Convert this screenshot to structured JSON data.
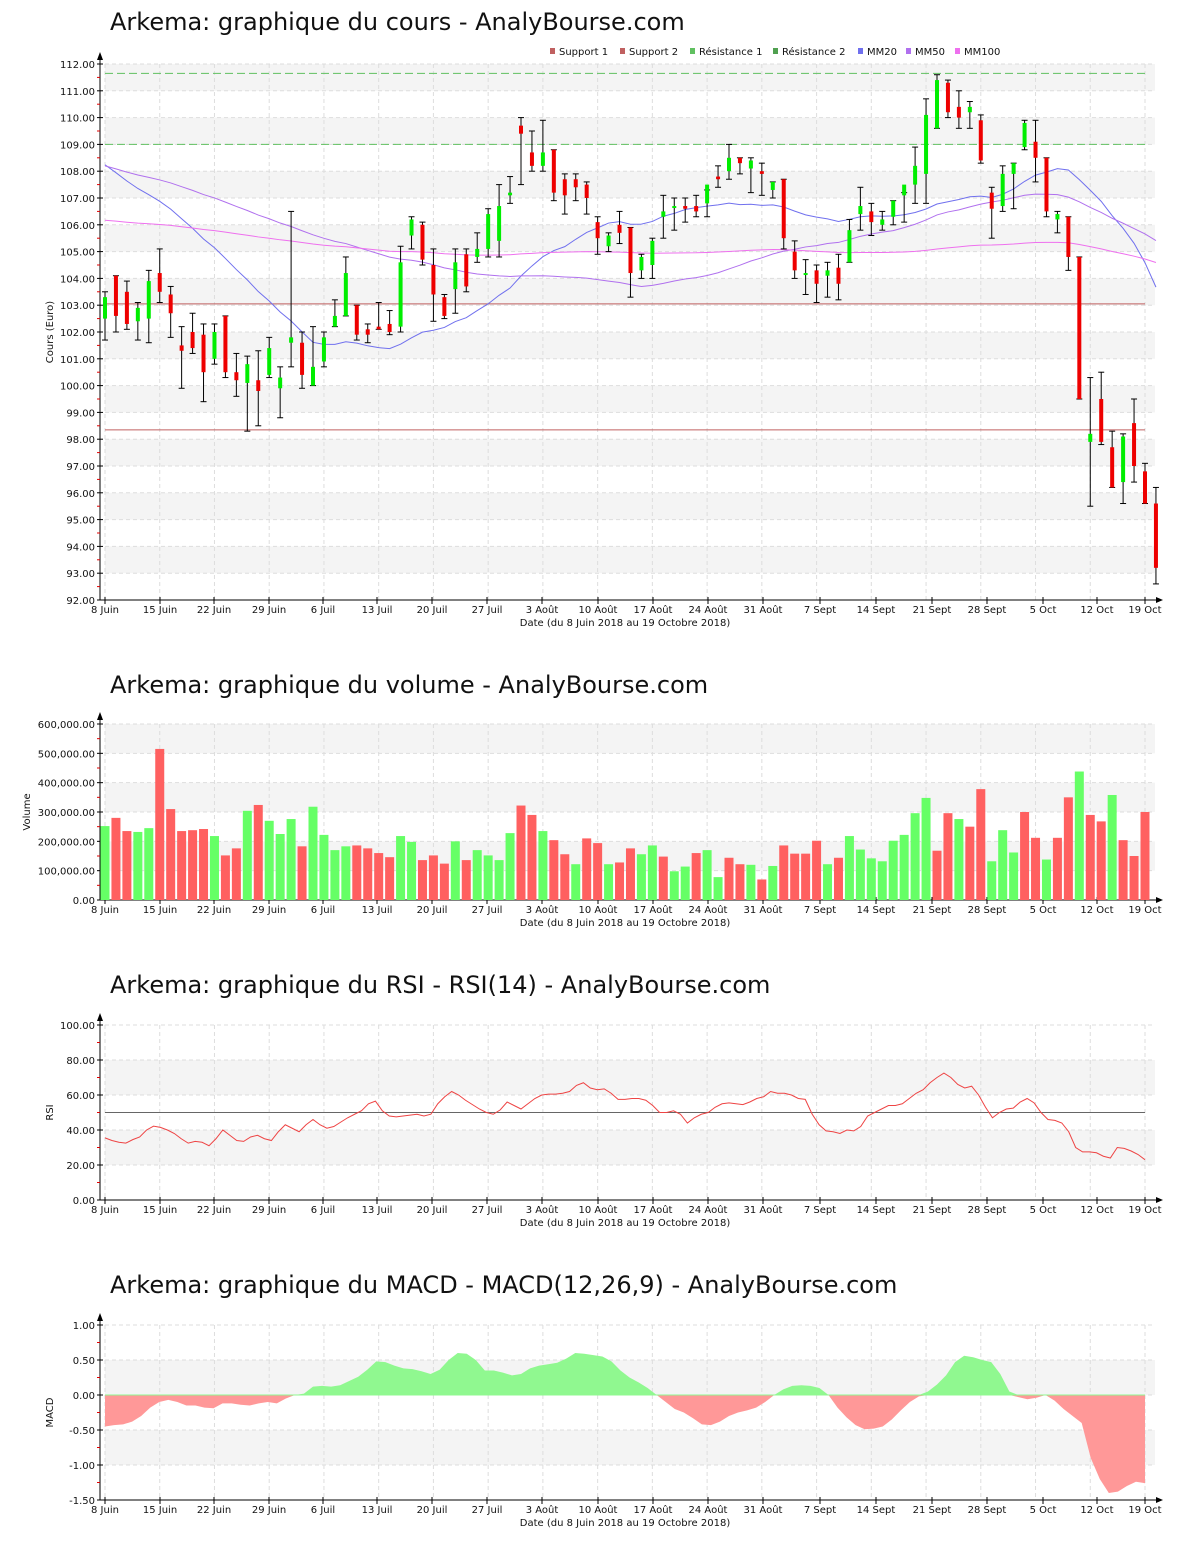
{
  "titles": {
    "price": "Arkema: graphique du cours - AnalyBourse.com",
    "volume": "Arkema: graphique du volume - AnalyBourse.com",
    "rsi": "Arkema: graphique du RSI - RSI(14) - AnalyBourse.com",
    "macd": "Arkema: graphique du MACD - MACD(12,26,9) - AnalyBourse.com"
  },
  "xlabel": "Date (du 8 Juin 2018 au 19 Octobre 2018)",
  "x_ticks": [
    "8 Juin",
    "15 Juin",
    "22 Juin",
    "29 Juin",
    "6 Juil",
    "13 Juil",
    "20 Juil",
    "27 Juil",
    "3 Août",
    "10 Août",
    "17 Août",
    "24 Août",
    "31 Août",
    "7 Sept",
    "14 Sept",
    "21 Sept",
    "28 Sept",
    "5 Oct",
    "12 Oct",
    "19 Oct"
  ],
  "colors": {
    "up": "#00ee00",
    "down": "#ee0000",
    "vol_up": "#66ff66",
    "vol_down": "#ff6060",
    "support": "#c06060",
    "resistance": "#60c060",
    "mm20": "#7070ee",
    "mm50": "#b070ee",
    "mm100": "#ee70ee",
    "rsi_line": "#ee4444",
    "macd_pos": "#90f890",
    "macd_neg": "#ff9898"
  },
  "chart_data": [
    {
      "type": "candlestick",
      "title": "Arkema: graphique du cours - AnalyBourse.com",
      "ylabel": "Cours (Euro)",
      "xlabel": "Date (du 8 Juin 2018 au 19 Octobre 2018)",
      "ylim": [
        92,
        112
      ],
      "y_ticks": [
        "92.00",
        "93.00",
        "94.00",
        "95.00",
        "96.00",
        "97.00",
        "98.00",
        "99.00",
        "100.00",
        "101.00",
        "102.00",
        "103.00",
        "104.00",
        "105.00",
        "106.00",
        "107.00",
        "108.00",
        "109.00",
        "110.00",
        "111.00",
        "112.00"
      ],
      "legend": [
        "Support 1",
        "Support 2",
        "Résistance 1",
        "Résistance 2",
        "MM20",
        "MM50",
        "MM100"
      ],
      "levels": {
        "support1": 103.05,
        "support2": 98.35,
        "resistance1": 111.65,
        "resistance2": 109.0
      },
      "candles": [
        {
          "o": 102.5,
          "h": 103.5,
          "l": 101.7,
          "c": 103.3
        },
        {
          "o": 104.1,
          "h": 104.1,
          "l": 102.0,
          "c": 102.6
        },
        {
          "o": 103.5,
          "h": 103.9,
          "l": 102.1,
          "c": 102.3
        },
        {
          "o": 102.4,
          "h": 103.1,
          "l": 101.7,
          "c": 102.9
        },
        {
          "o": 102.5,
          "h": 104.3,
          "l": 101.6,
          "c": 103.9
        },
        {
          "o": 104.2,
          "h": 105.1,
          "l": 103.1,
          "c": 103.5
        },
        {
          "o": 103.4,
          "h": 103.7,
          "l": 101.8,
          "c": 102.7
        },
        {
          "o": 101.5,
          "h": 102.2,
          "l": 99.9,
          "c": 101.3
        },
        {
          "o": 102.0,
          "h": 102.7,
          "l": 101.2,
          "c": 101.4
        },
        {
          "o": 101.9,
          "h": 102.3,
          "l": 99.4,
          "c": 100.5
        },
        {
          "o": 101.0,
          "h": 102.3,
          "l": 100.8,
          "c": 102.0
        },
        {
          "o": 102.6,
          "h": 102.6,
          "l": 100.3,
          "c": 100.5
        },
        {
          "o": 100.5,
          "h": 101.2,
          "l": 99.6,
          "c": 100.2
        },
        {
          "o": 100.1,
          "h": 101.1,
          "l": 98.3,
          "c": 100.8
        },
        {
          "o": 100.2,
          "h": 101.3,
          "l": 98.5,
          "c": 99.8
        },
        {
          "o": 100.4,
          "h": 101.8,
          "l": 100.3,
          "c": 101.4
        },
        {
          "o": 99.9,
          "h": 100.7,
          "l": 98.8,
          "c": 100.3
        },
        {
          "o": 101.6,
          "h": 106.5,
          "l": 100.7,
          "c": 101.8
        },
        {
          "o": 101.6,
          "h": 102.0,
          "l": 99.9,
          "c": 100.4
        },
        {
          "o": 100.0,
          "h": 102.2,
          "l": 100.0,
          "c": 100.7
        },
        {
          "o": 100.9,
          "h": 102.0,
          "l": 100.7,
          "c": 101.8
        },
        {
          "o": 102.2,
          "h": 103.2,
          "l": 102.2,
          "c": 102.6
        },
        {
          "o": 102.6,
          "h": 104.8,
          "l": 102.6,
          "c": 104.2
        },
        {
          "o": 103.0,
          "h": 103.0,
          "l": 101.7,
          "c": 101.9
        },
        {
          "o": 102.1,
          "h": 102.3,
          "l": 101.6,
          "c": 101.9
        },
        {
          "o": 102.2,
          "h": 103.1,
          "l": 102.1,
          "c": 102.1
        },
        {
          "o": 102.3,
          "h": 102.8,
          "l": 101.9,
          "c": 102.0
        },
        {
          "o": 102.2,
          "h": 105.2,
          "l": 102.0,
          "c": 104.6
        },
        {
          "o": 105.6,
          "h": 106.3,
          "l": 105.1,
          "c": 106.2
        },
        {
          "o": 106.0,
          "h": 106.1,
          "l": 104.5,
          "c": 104.7
        },
        {
          "o": 104.5,
          "h": 105.1,
          "l": 102.4,
          "c": 103.4
        },
        {
          "o": 103.3,
          "h": 103.4,
          "l": 102.5,
          "c": 102.6
        },
        {
          "o": 103.6,
          "h": 105.1,
          "l": 102.7,
          "c": 104.6
        },
        {
          "o": 104.9,
          "h": 105.1,
          "l": 103.5,
          "c": 103.7
        },
        {
          "o": 104.8,
          "h": 105.7,
          "l": 104.6,
          "c": 105.1
        },
        {
          "o": 105.1,
          "h": 106.6,
          "l": 104.8,
          "c": 106.4
        },
        {
          "o": 105.4,
          "h": 107.5,
          "l": 104.8,
          "c": 106.7
        },
        {
          "o": 107.1,
          "h": 107.8,
          "l": 106.8,
          "c": 107.2
        },
        {
          "o": 109.7,
          "h": 110.0,
          "l": 107.5,
          "c": 109.4
        },
        {
          "o": 108.7,
          "h": 109.5,
          "l": 108.0,
          "c": 108.2
        },
        {
          "o": 108.2,
          "h": 109.9,
          "l": 108.0,
          "c": 108.7
        },
        {
          "o": 108.8,
          "h": 108.8,
          "l": 106.9,
          "c": 107.2
        },
        {
          "o": 107.7,
          "h": 107.9,
          "l": 106.4,
          "c": 107.1
        },
        {
          "o": 107.7,
          "h": 107.9,
          "l": 106.9,
          "c": 107.4
        },
        {
          "o": 107.5,
          "h": 107.6,
          "l": 106.4,
          "c": 107.0
        },
        {
          "o": 106.1,
          "h": 106.3,
          "l": 104.9,
          "c": 105.5
        },
        {
          "o": 105.2,
          "h": 105.7,
          "l": 105.0,
          "c": 105.6
        },
        {
          "o": 106.0,
          "h": 106.5,
          "l": 105.3,
          "c": 105.7
        },
        {
          "o": 105.9,
          "h": 105.9,
          "l": 103.3,
          "c": 104.2
        },
        {
          "o": 104.3,
          "h": 104.9,
          "l": 104.0,
          "c": 104.8
        },
        {
          "o": 104.5,
          "h": 105.5,
          "l": 104.0,
          "c": 105.4
        },
        {
          "o": 106.3,
          "h": 107.1,
          "l": 105.5,
          "c": 106.5
        },
        {
          "o": 106.7,
          "h": 107.0,
          "l": 105.8,
          "c": 106.7
        },
        {
          "o": 106.7,
          "h": 107.0,
          "l": 106.1,
          "c": 106.6
        },
        {
          "o": 106.7,
          "h": 107.1,
          "l": 106.3,
          "c": 106.5
        },
        {
          "o": 106.8,
          "h": 107.3,
          "l": 106.3,
          "c": 107.5
        },
        {
          "o": 107.8,
          "h": 108.2,
          "l": 107.4,
          "c": 107.7
        },
        {
          "o": 108.0,
          "h": 109.0,
          "l": 107.7,
          "c": 108.5
        },
        {
          "o": 108.5,
          "h": 108.5,
          "l": 107.9,
          "c": 108.3
        },
        {
          "o": 108.1,
          "h": 108.5,
          "l": 107.2,
          "c": 108.4
        },
        {
          "o": 108.0,
          "h": 108.3,
          "l": 107.1,
          "c": 107.9
        },
        {
          "o": 107.3,
          "h": 107.6,
          "l": 107.0,
          "c": 107.6
        },
        {
          "o": 107.7,
          "h": 107.7,
          "l": 105.1,
          "c": 105.5
        },
        {
          "o": 105.0,
          "h": 105.4,
          "l": 104.0,
          "c": 104.3
        },
        {
          "o": 104.2,
          "h": 104.7,
          "l": 103.4,
          "c": 104.2
        },
        {
          "o": 104.3,
          "h": 104.5,
          "l": 103.1,
          "c": 103.8
        },
        {
          "o": 104.1,
          "h": 104.6,
          "l": 103.3,
          "c": 104.3
        },
        {
          "o": 104.4,
          "h": 104.9,
          "l": 103.2,
          "c": 103.8
        },
        {
          "o": 104.6,
          "h": 106.2,
          "l": 104.6,
          "c": 105.8
        },
        {
          "o": 106.4,
          "h": 107.4,
          "l": 105.8,
          "c": 106.7
        },
        {
          "o": 106.5,
          "h": 106.8,
          "l": 105.6,
          "c": 106.1
        },
        {
          "o": 106.0,
          "h": 106.5,
          "l": 105.8,
          "c": 106.2
        },
        {
          "o": 106.3,
          "h": 106.9,
          "l": 106.0,
          "c": 106.9
        },
        {
          "o": 107.1,
          "h": 107.2,
          "l": 106.1,
          "c": 107.5
        },
        {
          "o": 107.5,
          "h": 108.9,
          "l": 106.8,
          "c": 108.2
        },
        {
          "o": 107.9,
          "h": 110.7,
          "l": 106.8,
          "c": 110.1
        },
        {
          "o": 109.6,
          "h": 111.6,
          "l": 109.6,
          "c": 111.4
        },
        {
          "o": 111.3,
          "h": 111.4,
          "l": 110.0,
          "c": 110.2
        },
        {
          "o": 110.4,
          "h": 111.0,
          "l": 109.6,
          "c": 110.0
        },
        {
          "o": 110.2,
          "h": 110.6,
          "l": 109.6,
          "c": 110.4
        },
        {
          "o": 109.9,
          "h": 110.1,
          "l": 108.3,
          "c": 108.4
        },
        {
          "o": 107.2,
          "h": 107.4,
          "l": 105.5,
          "c": 106.6
        },
        {
          "o": 106.7,
          "h": 108.2,
          "l": 106.5,
          "c": 107.9
        },
        {
          "o": 107.9,
          "h": 108.3,
          "l": 106.6,
          "c": 108.3
        },
        {
          "o": 108.9,
          "h": 109.9,
          "l": 108.8,
          "c": 109.8
        },
        {
          "o": 109.1,
          "h": 109.9,
          "l": 107.6,
          "c": 108.5
        },
        {
          "o": 108.5,
          "h": 108.5,
          "l": 106.3,
          "c": 106.5
        },
        {
          "o": 106.2,
          "h": 106.5,
          "l": 105.7,
          "c": 106.4
        },
        {
          "o": 106.3,
          "h": 106.3,
          "l": 104.3,
          "c": 104.8
        },
        {
          "o": 104.8,
          "h": 104.8,
          "l": 99.5,
          "c": 99.5
        },
        {
          "o": 97.9,
          "h": 100.3,
          "l": 95.5,
          "c": 98.2
        },
        {
          "o": 99.5,
          "h": 100.5,
          "l": 97.8,
          "c": 97.9
        },
        {
          "o": 97.7,
          "h": 98.3,
          "l": 96.2,
          "c": 96.2
        },
        {
          "o": 96.4,
          "h": 98.2,
          "l": 95.6,
          "c": 98.1
        },
        {
          "o": 98.6,
          "h": 99.5,
          "l": 96.4,
          "c": 97.0
        },
        {
          "o": 96.8,
          "h": 97.1,
          "l": 95.6,
          "c": 95.6
        },
        {
          "o": 95.6,
          "h": 96.2,
          "l": 92.6,
          "c": 93.2
        }
      ]
    },
    {
      "type": "bar",
      "title": "Arkema: graphique du volume - AnalyBourse.com",
      "ylabel": "Volume",
      "xlabel": "Date (du 8 Juin 2018 au 19 Octobre 2018)",
      "ylim": [
        0,
        600000
      ],
      "y_ticks": [
        "0.00",
        "100,000.00",
        "200,000.00",
        "300,000.00",
        "400,000.00",
        "500,000.00",
        "600,000.00"
      ],
      "values": [
        252000,
        280000,
        235000,
        232000,
        245000,
        515000,
        310000,
        235000,
        238000,
        242000,
        218000,
        152000,
        176000,
        304000,
        324000,
        270000,
        225000,
        276000,
        183000,
        318000,
        222000,
        170000,
        183000,
        186000,
        176000,
        160000,
        146000,
        218000,
        198000,
        136000,
        152000,
        124000,
        200000,
        136000,
        170000,
        152000,
        136000,
        228000,
        322000,
        290000,
        235000,
        204000,
        156000,
        122000,
        210000,
        194000,
        122000,
        128000,
        176000,
        156000,
        186000,
        148000,
        98000,
        114000,
        160000,
        170000,
        78000,
        144000,
        122000,
        120000,
        70000,
        116000,
        186000,
        158000,
        158000,
        202000,
        122000,
        144000,
        218000,
        172000,
        142000,
        132000,
        202000,
        222000,
        296000,
        348000,
        168000,
        296000,
        276000,
        250000,
        378000,
        132000,
        238000,
        162000,
        300000,
        212000,
        138000,
        212000,
        350000,
        438000,
        290000,
        268000,
        358000,
        204000,
        150000,
        300000
      ],
      "up": [
        1,
        0,
        0,
        1,
        1,
        0,
        0,
        0,
        0,
        0,
        1,
        0,
        0,
        1,
        0,
        1,
        1,
        1,
        0,
        1,
        1,
        1,
        1,
        0,
        0,
        0,
        0,
        1,
        1,
        0,
        0,
        0,
        1,
        0,
        1,
        1,
        1,
        1,
        0,
        0,
        1,
        0,
        0,
        1,
        0,
        0,
        1,
        0,
        0,
        1,
        1,
        0,
        1,
        1,
        0,
        1,
        1,
        0,
        0,
        1,
        0,
        1,
        0,
        0,
        0,
        0,
        1,
        0,
        1,
        1,
        1,
        1,
        1,
        1,
        1,
        1,
        0,
        0,
        1,
        0,
        0,
        1,
        1,
        1,
        0,
        0,
        1,
        0,
        0,
        1,
        0,
        0,
        1,
        0,
        0,
        0
      ]
    },
    {
      "type": "line",
      "title": "Arkema: graphique du RSI - RSI(14) - AnalyBourse.com",
      "ylabel": "RSI",
      "xlabel": "Date (du 8 Juin 2018 au 19 Octobre 2018)",
      "ylim": [
        0,
        100
      ],
      "y_ticks": [
        "0.00",
        "20.00",
        "40.00",
        "60.00",
        "80.00",
        "100.00"
      ],
      "reference_line": 50,
      "values": [
        35.5,
        34,
        33,
        32.5,
        34.5,
        36,
        40,
        42.2,
        41.5,
        40,
        38,
        35,
        32.5,
        33.5,
        33,
        31,
        35,
        40,
        37,
        34,
        33.5,
        36,
        37,
        35,
        34,
        39,
        43,
        41,
        39,
        43,
        46,
        43,
        41,
        42,
        44.5,
        47,
        49,
        51,
        55,
        56.5,
        51,
        48,
        47.5,
        48,
        48.5,
        49,
        48,
        49,
        55,
        59,
        62,
        60,
        57,
        54.5,
        52,
        50,
        49,
        51.5,
        56,
        54,
        52,
        55,
        58,
        60,
        60.5,
        60.5,
        61,
        62,
        65.5,
        67,
        64,
        63,
        63.5,
        61,
        57.5,
        57.5,
        58,
        58,
        57,
        54,
        50,
        50,
        51,
        49,
        44,
        47,
        49,
        50,
        53,
        55,
        55.5,
        55,
        54.5,
        56,
        58,
        59,
        62,
        61,
        61,
        60,
        58,
        57.5,
        49,
        43,
        39.5,
        39,
        38,
        40,
        39.5,
        42,
        48,
        50,
        52,
        54,
        54,
        55,
        58,
        61,
        63,
        67,
        70,
        72.5,
        70,
        66,
        64,
        65,
        60,
        53,
        47,
        50,
        52,
        52.5,
        56,
        58,
        55.5,
        50,
        46,
        45.5,
        44,
        39,
        30,
        27.5,
        27.5,
        27,
        25,
        24,
        30,
        29.5,
        28,
        26,
        23
      ]
    },
    {
      "type": "area",
      "title": "Arkema: graphique du MACD - MACD(12,26,9) - AnalyBourse.com",
      "ylabel": "MACD",
      "xlabel": "Date (du 8 Juin 2018 au 19 Octobre 2018)",
      "ylim": [
        -1.5,
        1.0
      ],
      "y_ticks": [
        "-1.50",
        "-1.00",
        "-0.50",
        "0.00",
        "0.50",
        "1.00"
      ],
      "values": [
        -0.45,
        -0.43,
        -0.42,
        -0.38,
        -0.3,
        -0.18,
        -0.1,
        -0.07,
        -0.1,
        -0.15,
        -0.15,
        -0.18,
        -0.19,
        -0.12,
        -0.12,
        -0.14,
        -0.15,
        -0.12,
        -0.1,
        -0.12,
        -0.05,
        0.0,
        0.02,
        0.12,
        0.13,
        0.12,
        0.14,
        0.2,
        0.26,
        0.36,
        0.48,
        0.47,
        0.42,
        0.38,
        0.37,
        0.34,
        0.3,
        0.36,
        0.5,
        0.6,
        0.59,
        0.5,
        0.35,
        0.35,
        0.32,
        0.28,
        0.3,
        0.38,
        0.42,
        0.44,
        0.46,
        0.52,
        0.6,
        0.59,
        0.57,
        0.55,
        0.48,
        0.35,
        0.25,
        0.18,
        0.1,
        0.0,
        -0.1,
        -0.2,
        -0.25,
        -0.33,
        -0.42,
        -0.43,
        -0.38,
        -0.3,
        -0.25,
        -0.22,
        -0.18,
        -0.1,
        0.0,
        0.08,
        0.13,
        0.14,
        0.13,
        0.1,
        0.0,
        -0.18,
        -0.32,
        -0.43,
        -0.49,
        -0.48,
        -0.45,
        -0.35,
        -0.22,
        -0.1,
        -0.02,
        0.05,
        0.15,
        0.28,
        0.47,
        0.56,
        0.54,
        0.5,
        0.47,
        0.3,
        0.05,
        -0.03,
        -0.06,
        -0.04,
        0.0,
        -0.08,
        -0.2,
        -0.3,
        -0.4,
        -0.9,
        -1.2,
        -1.4,
        -1.38,
        -1.3,
        -1.24,
        -1.26
      ]
    }
  ]
}
